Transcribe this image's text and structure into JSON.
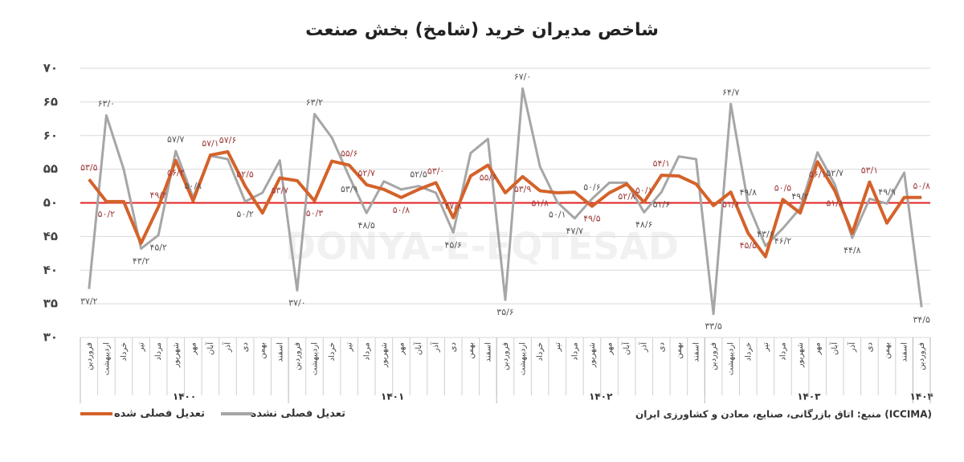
{
  "chart_data": {
    "type": "line",
    "title": "شاخص مدیران خرید (شامخ) بخش صنعت",
    "watermark": "DONYA-E-EQTESAD",
    "source": "منبع: اتاق بازرگانی، صنایع، معادن و کشاورزی ایران (ICCIMA)",
    "categories": [
      "فروردین",
      "اردیبهشت",
      "خرداد",
      "تیر",
      "مرداد",
      "شهریور",
      "مهر",
      "آبان",
      "آذر",
      "دی",
      "بهمن",
      "اسفند",
      "فروردین",
      "اردیبهشت",
      "خرداد",
      "تیر",
      "مرداد",
      "شهریور",
      "مهر",
      "آبان",
      "آذر",
      "دی",
      "بهمن",
      "اسفند",
      "فروردین",
      "اردیبهشت",
      "خرداد",
      "تیر",
      "مرداد",
      "شهریور",
      "مهر",
      "آبان",
      "آذر",
      "دی",
      "بهمن",
      "اسفند",
      "فروردین",
      "اردیبهشت",
      "خرداد",
      "تیر",
      "مرداد",
      "شهریور",
      "مهر",
      "آبان",
      "آذر",
      "دی",
      "بهمن",
      "اسفند",
      "فروردین"
    ],
    "x_groups": [
      {
        "name": "۱۴۰۰",
        "span": 12
      },
      {
        "name": "۱۴۰۱",
        "span": 12
      },
      {
        "name": "۱۴۰۲",
        "span": 12
      },
      {
        "name": "۱۴۰۳",
        "span": 12
      },
      {
        "name": "۱۴۰۴",
        "span": 1
      }
    ],
    "series": [
      {
        "name": "تعدیل فصلی شده",
        "color": "#d4622a",
        "values": [
          53.5,
          50.2,
          50.2,
          44.0,
          49.4,
          56.3,
          50.3,
          57.1,
          57.6,
          52.5,
          48.5,
          53.7,
          53.3,
          50.3,
          56.2,
          55.6,
          52.7,
          52.0,
          50.8,
          52.0,
          53.0,
          47.8,
          54.0,
          55.6,
          51.5,
          53.9,
          51.8,
          51.5,
          51.6,
          49.5,
          51.5,
          52.8,
          50.1,
          54.1,
          54.0,
          52.8,
          49.6,
          51.6,
          45.5,
          42.0,
          50.5,
          48.5,
          56.1,
          51.8,
          45.5,
          53.1,
          47.0,
          50.8,
          50.8
        ],
        "value_labels": [
          "۵۳/۵",
          "۵۰/۲",
          null,
          null,
          "۴۹/۴",
          "۵۶/۳",
          null,
          "۵۷/۱",
          "۵۷/۶",
          "۵۲/۵",
          null,
          "۵۳/۷",
          null,
          "۵۰/۳",
          null,
          "۵۵/۶",
          "۵۲/۷",
          null,
          "۵۰/۸",
          null,
          "۵۳/۰",
          "۴۷/۸",
          null,
          "۵۵/۶",
          null,
          "۵۳/۹",
          "۵۱/۸",
          null,
          null,
          "۴۹/۵",
          null,
          "۵۲/۸",
          "۵۰/۱",
          "۵۴/۱",
          null,
          null,
          null,
          "۵۱/۶",
          "۴۵/۵",
          null,
          "۵۰/۵",
          null,
          "۵۶/۱",
          "۵۱/۸",
          null,
          "۵۳/۱",
          null,
          null,
          "۵۰/۸"
        ]
      },
      {
        "name": "تعدیل فصلی نشده",
        "color": "#a6a6a6",
        "values": [
          37.2,
          63.0,
          55.0,
          43.2,
          45.2,
          57.7,
          50.8,
          57.0,
          56.5,
          50.2,
          51.5,
          56.3,
          37.0,
          63.2,
          59.7,
          53.9,
          48.5,
          53.2,
          52.0,
          52.5,
          51.5,
          45.6,
          57.4,
          59.5,
          35.6,
          67.0,
          55.4,
          50.1,
          47.7,
          50.6,
          53.0,
          53.0,
          48.6,
          51.6,
          56.9,
          56.5,
          33.5,
          64.7,
          49.8,
          43.6,
          46.2,
          49.2,
          57.5,
          52.7,
          44.8,
          50.6,
          49.9,
          54.5,
          34.5
        ],
        "value_labels": [
          "۳۷/۲",
          "۶۳/۰",
          null,
          "۴۳/۲",
          "۴۵/۲",
          "۵۷/۷",
          "۵۰/۸",
          null,
          null,
          "۵۰/۲",
          null,
          null,
          "۳۷/۰",
          "۶۳/۲",
          null,
          "۵۳/۹",
          "۴۸/۵",
          null,
          null,
          "۵۲/۵",
          null,
          "۴۵/۶",
          null,
          null,
          "۳۵/۶",
          "۶۷/۰",
          null,
          "۵۰/۱",
          "۴۷/۷",
          "۵۰/۶",
          null,
          null,
          "۴۸/۶",
          "۵۱/۶",
          null,
          null,
          "۳۳/۵",
          "۶۴/۷",
          "۴۹/۸",
          "۴۳/۶",
          "۴۶/۲",
          "۴۹/۲",
          null,
          "۵۲/۷",
          "۴۴/۸",
          null,
          "۴۹/۹",
          null,
          "۳۴/۵"
        ]
      }
    ],
    "reference_line": {
      "value": 50,
      "color": "#e02020"
    },
    "ylim": [
      30,
      70
    ],
    "yticks": [
      {
        "value": 30,
        "label": "۳۰"
      },
      {
        "value": 35,
        "label": "۳۵"
      },
      {
        "value": 40,
        "label": "۴۰"
      },
      {
        "value": 45,
        "label": "۴۵"
      },
      {
        "value": 50,
        "label": "۵۰"
      },
      {
        "value": 55,
        "label": "۵۵"
      },
      {
        "value": 60,
        "label": "۶۰"
      },
      {
        "value": 65,
        "label": "۶۵"
      },
      {
        "value": 70,
        "label": "۷۰"
      }
    ],
    "grid": true
  }
}
